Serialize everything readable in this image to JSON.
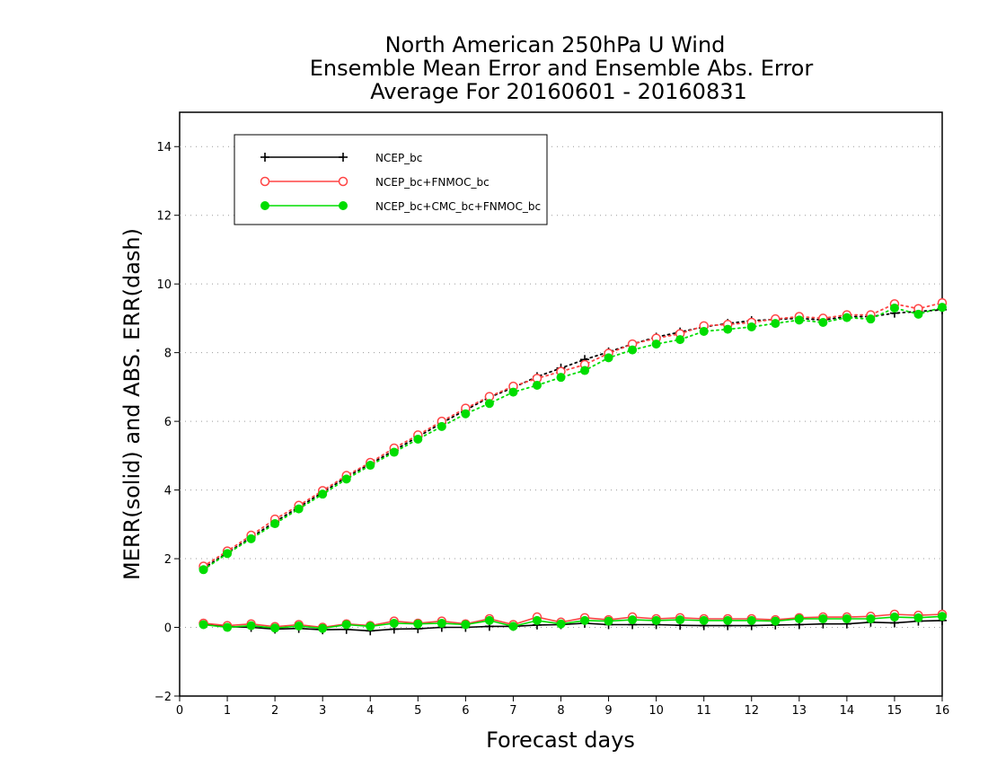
{
  "chart_data": {
    "type": "line",
    "title": [
      "North American 250hPa U Wind",
      "Ensemble Mean Error and Ensemble Abs. Error",
      "Average For 20160601 - 20160831"
    ],
    "xlabel": "Forecast days",
    "ylabel": "MERR(solid) and ABS. ERR(dash)",
    "xlim": [
      0,
      16
    ],
    "ylim": [
      -2,
      15
    ],
    "x_ticks": [
      0,
      1,
      2,
      3,
      4,
      5,
      6,
      7,
      8,
      9,
      10,
      11,
      12,
      13,
      14,
      15,
      16
    ],
    "y_ticks": [
      -2,
      0,
      2,
      4,
      6,
      8,
      10,
      12,
      14
    ],
    "grid": "horizontal dotted",
    "legend_position": "top-left",
    "x": [
      0.5,
      1,
      1.5,
      2,
      2.5,
      3,
      3.5,
      4,
      4.5,
      5,
      5.5,
      6,
      6.5,
      7,
      7.5,
      8,
      8.5,
      9,
      9.5,
      10,
      10.5,
      11,
      11.5,
      12,
      12.5,
      13,
      13.5,
      14,
      14.5,
      15,
      15.5,
      16
    ],
    "series": [
      {
        "name": "NCEP_bc",
        "color": "#000000",
        "marker": "plus",
        "merr": [
          0.1,
          0.02,
          0.0,
          -0.05,
          -0.03,
          -0.07,
          -0.06,
          -0.1,
          -0.05,
          -0.04,
          0.0,
          0.0,
          0.03,
          0.03,
          0.07,
          0.08,
          0.12,
          0.08,
          0.08,
          0.08,
          0.06,
          0.05,
          0.05,
          0.05,
          0.07,
          0.08,
          0.1,
          0.1,
          0.15,
          0.13,
          0.18,
          0.2
        ],
        "abs_err": [
          1.72,
          2.17,
          2.62,
          3.07,
          3.5,
          3.93,
          4.38,
          4.76,
          5.15,
          5.55,
          5.95,
          6.33,
          6.7,
          6.98,
          7.3,
          7.55,
          7.8,
          8.02,
          8.25,
          8.45,
          8.6,
          8.75,
          8.85,
          8.93,
          8.97,
          9.0,
          8.95,
          9.05,
          9.05,
          9.15,
          9.2,
          9.25
        ]
      },
      {
        "name": "NCEP_bc+FNMOC_bc",
        "color": "#ff4444",
        "marker": "open-circle",
        "merr": [
          0.12,
          0.05,
          0.1,
          0.02,
          0.08,
          0.0,
          0.1,
          0.05,
          0.18,
          0.12,
          0.18,
          0.1,
          0.25,
          0.08,
          0.3,
          0.15,
          0.28,
          0.22,
          0.3,
          0.25,
          0.28,
          0.25,
          0.25,
          0.25,
          0.22,
          0.28,
          0.3,
          0.3,
          0.32,
          0.38,
          0.35,
          0.38
        ],
        "abs_err": [
          1.78,
          2.22,
          2.68,
          3.15,
          3.55,
          3.98,
          4.42,
          4.8,
          5.22,
          5.6,
          6.0,
          6.38,
          6.72,
          7.02,
          7.25,
          7.45,
          7.65,
          7.98,
          8.25,
          8.42,
          8.55,
          8.78,
          8.82,
          8.88,
          8.98,
          9.05,
          9.0,
          9.1,
          9.1,
          9.42,
          9.28,
          9.45
        ]
      },
      {
        "name": "NCEP_bc+CMC_bc+FNMOC_bc",
        "color": "#00dd00",
        "marker": "filled-circle",
        "merr": [
          0.08,
          0.0,
          0.05,
          -0.02,
          0.04,
          -0.03,
          0.08,
          0.03,
          0.12,
          0.1,
          0.12,
          0.08,
          0.2,
          0.03,
          0.2,
          0.1,
          0.2,
          0.18,
          0.22,
          0.2,
          0.22,
          0.2,
          0.2,
          0.2,
          0.18,
          0.25,
          0.25,
          0.25,
          0.25,
          0.3,
          0.28,
          0.32
        ],
        "abs_err": [
          1.68,
          2.15,
          2.58,
          3.02,
          3.45,
          3.88,
          4.32,
          4.72,
          5.1,
          5.48,
          5.85,
          6.22,
          6.52,
          6.85,
          7.05,
          7.28,
          7.48,
          7.85,
          8.08,
          8.25,
          8.38,
          8.62,
          8.68,
          8.75,
          8.85,
          8.95,
          8.88,
          9.02,
          8.98,
          9.3,
          9.12,
          9.32
        ]
      }
    ]
  }
}
